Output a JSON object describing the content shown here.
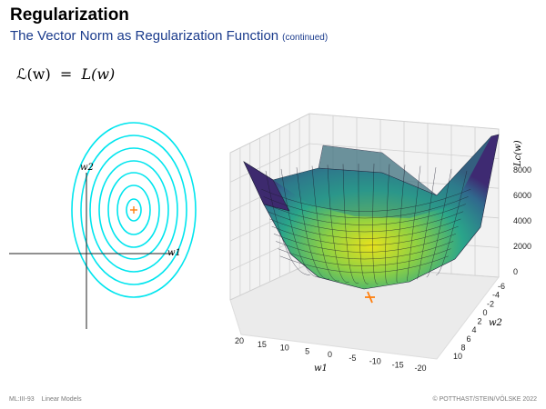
{
  "header": {
    "title": "Regularization",
    "subtitle": "The Vector Norm as Regularization Function",
    "subtitle_note": "(continued)"
  },
  "formula": {
    "lhs": "ℒ(w)",
    "eq": "=",
    "rhs": "L(w)"
  },
  "contour_plot": {
    "x_label": "w1",
    "y_label": "w2",
    "contour_color": "#00e5ee",
    "minimum_color": "#ff7f0e"
  },
  "chart_data": {
    "type": "surface",
    "z_label": "Lc(w)",
    "x_label": "w1",
    "y_label": "w2",
    "x_ticks": [
      "20",
      "15",
      "10",
      "5",
      "0",
      "-5",
      "-10",
      "-15",
      "-20"
    ],
    "y_ticks": [
      "-6",
      "-4",
      "-2",
      "0",
      "2",
      "4",
      "6",
      "8",
      "10"
    ],
    "z_ticks": [
      "0",
      "2000",
      "4000",
      "6000",
      "8000"
    ],
    "colormap": "viridis",
    "minimum_marker_color": "#ff7f0e"
  },
  "footer": {
    "left_code": "ML:III-93",
    "left_topic": "Linear Models",
    "right": "© POTTHAST/STEIN/VÖLSKE 2022"
  }
}
